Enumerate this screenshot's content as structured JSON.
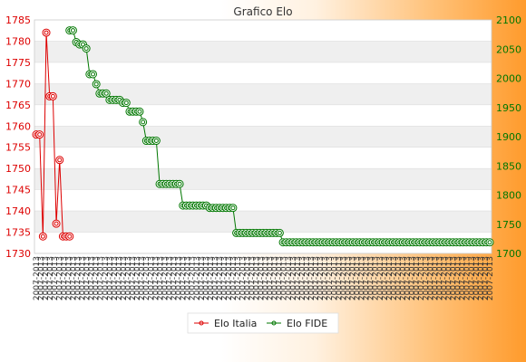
{
  "chart_data": {
    "type": "line",
    "title": "Grafico Elo",
    "legend_position": "bottom",
    "grid": true,
    "colors": {
      "elo_italia": "#dd0000",
      "elo_fide": "#007700",
      "band": "#efefef",
      "plot_bg": "#ffffff"
    },
    "y_left": {
      "ticks": [
        1730,
        1735,
        1740,
        1745,
        1750,
        1755,
        1760,
        1765,
        1770,
        1775,
        1780,
        1785
      ],
      "range": [
        1730,
        1785
      ]
    },
    "y_right": {
      "ticks": [
        1700,
        1750,
        1800,
        1850,
        1900,
        1950,
        2000,
        2050,
        2100
      ],
      "range": [
        1700,
        2100
      ]
    },
    "x_range": [
      0,
      136
    ],
    "series": [
      {
        "name": "Elo Italia",
        "axis": "left",
        "x": [
          0,
          1,
          2,
          3,
          4,
          5,
          6,
          7,
          8,
          9,
          10
        ],
        "values": [
          1758,
          1758,
          1734,
          1782,
          1767,
          1767,
          1737,
          1752,
          1734,
          1734,
          1734
        ]
      },
      {
        "name": "Elo FIDE",
        "axis": "right",
        "x": [
          10,
          11,
          12,
          13,
          14,
          15,
          16,
          17,
          18,
          19,
          20,
          21,
          22,
          23,
          24,
          25,
          26,
          27,
          28,
          29,
          30,
          31,
          32,
          33,
          34,
          35,
          36,
          37,
          38,
          39,
          40,
          41,
          42,
          43,
          44,
          45,
          46,
          47,
          48,
          49,
          50,
          51,
          52,
          53,
          54,
          55,
          56,
          57,
          58,
          59,
          60,
          61,
          62,
          63,
          64,
          65,
          66,
          67,
          68,
          69,
          70,
          71,
          72,
          73,
          74,
          75,
          76,
          77,
          78,
          79,
          80,
          81,
          82,
          83,
          84,
          85,
          86,
          87,
          88,
          89,
          90,
          91,
          92,
          93,
          94,
          95,
          96,
          97,
          98,
          99,
          100,
          101,
          102,
          103,
          104,
          105,
          106,
          107,
          108,
          109,
          110,
          111,
          112,
          113,
          114,
          115,
          116,
          117,
          118,
          119,
          120,
          121,
          122,
          123,
          124,
          125,
          126,
          127,
          128,
          129,
          130,
          131,
          132,
          133,
          134,
          135,
          136
        ],
        "values": [
          2082,
          2082,
          2062,
          2058,
          2058,
          2051,
          2007,
          2007,
          1990,
          1974,
          1974,
          1974,
          1963,
          1963,
          1963,
          1963,
          1958,
          1958,
          1943,
          1943,
          1943,
          1943,
          1925,
          1893,
          1893,
          1893,
          1893,
          1819,
          1819,
          1819,
          1819,
          1819,
          1819,
          1819,
          1782,
          1782,
          1782,
          1782,
          1782,
          1782,
          1782,
          1782,
          1778,
          1778,
          1778,
          1778,
          1778,
          1778,
          1778,
          1778,
          1735,
          1735,
          1735,
          1735,
          1735,
          1735,
          1735,
          1735,
          1735,
          1735,
          1735,
          1735,
          1735,
          1735,
          1719,
          1719,
          1719,
          1719,
          1719,
          1719,
          1719,
          1719,
          1719,
          1719,
          1719,
          1719,
          1719,
          1719,
          1719,
          1719,
          1719,
          1719,
          1719,
          1719,
          1719,
          1719,
          1719,
          1719,
          1719,
          1719,
          1719,
          1719,
          1719,
          1719,
          1719,
          1719,
          1719,
          1719,
          1719,
          1719,
          1719,
          1719,
          1719,
          1719,
          1719,
          1719,
          1719,
          1719,
          1719,
          1719,
          1719,
          1719,
          1719,
          1719,
          1719,
          1719,
          1719,
          1719,
          1719,
          1719,
          1719,
          1719,
          1719,
          1719,
          1719,
          1719,
          1719
        ]
      }
    ],
    "x_tick_label": "2007-2013"
  }
}
